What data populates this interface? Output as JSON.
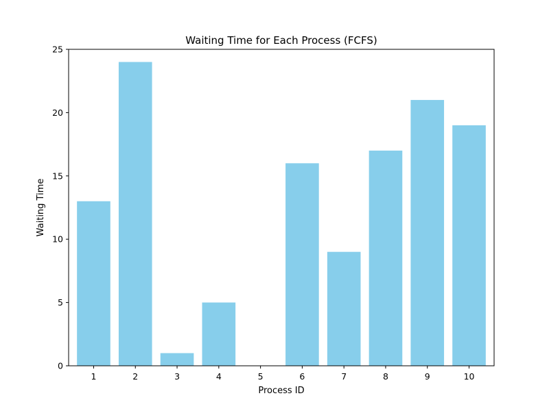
{
  "chart_data": {
    "type": "bar",
    "title": "Waiting Time for Each Process (FCFS)",
    "xlabel": "Process ID",
    "ylabel": "Waiting Time",
    "categories": [
      "1",
      "2",
      "3",
      "4",
      "5",
      "6",
      "7",
      "8",
      "9",
      "10"
    ],
    "values": [
      13,
      24,
      1,
      5,
      0,
      16,
      9,
      17,
      21,
      19
    ],
    "ylim": [
      0,
      25
    ],
    "yticks": [
      "0",
      "5",
      "10",
      "15",
      "20",
      "25"
    ],
    "grid": false,
    "legend": "none",
    "bar_color": "#87ceeb"
  }
}
